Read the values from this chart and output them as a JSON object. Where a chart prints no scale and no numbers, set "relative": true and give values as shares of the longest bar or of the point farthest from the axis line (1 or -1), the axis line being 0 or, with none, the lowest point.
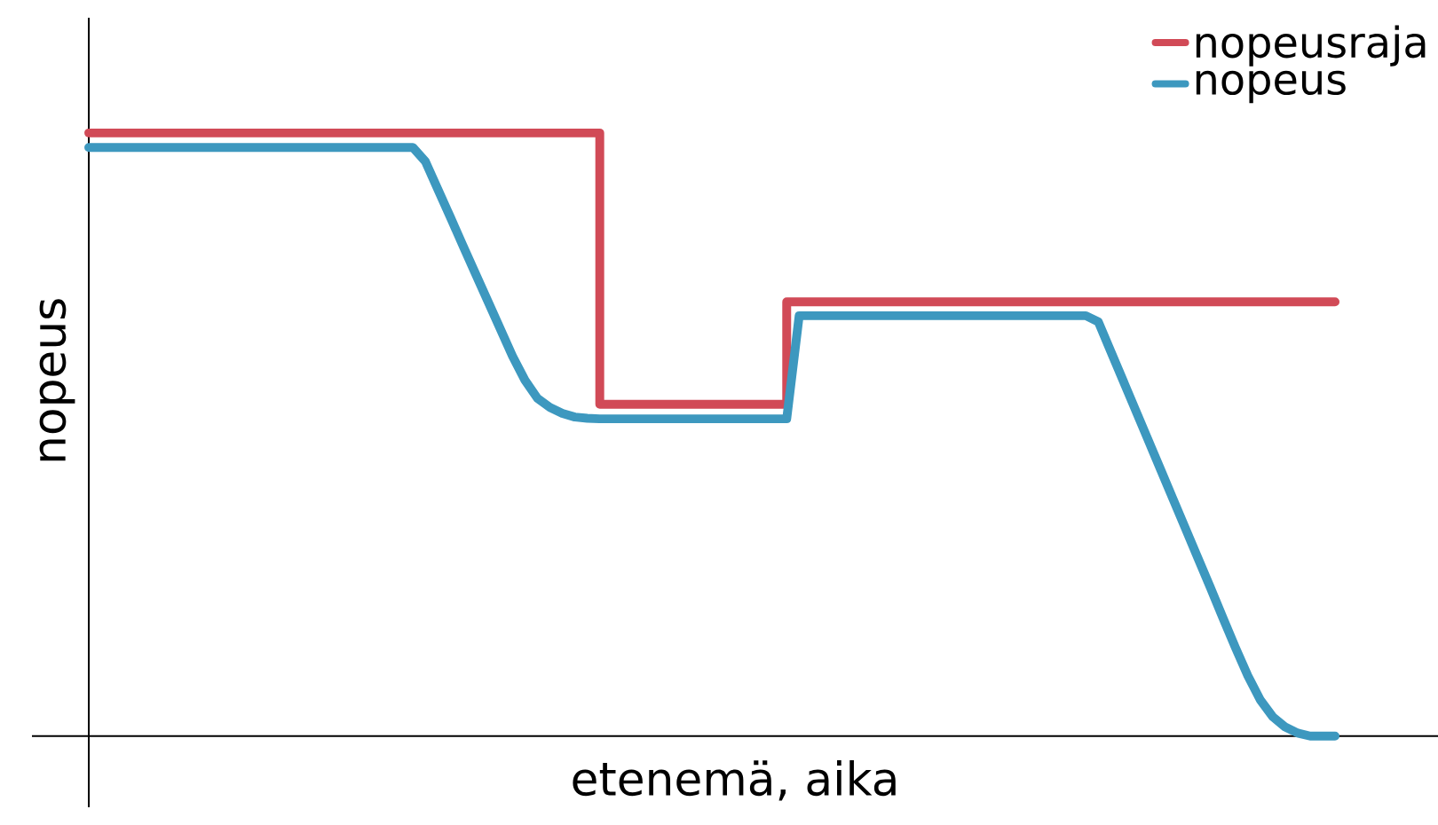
{
  "chart_data": {
    "type": "line",
    "xlabel": "etenemä, aika",
    "ylabel": "nopeus",
    "relative": true,
    "legend": "top right",
    "marker": "none",
    "line_style": "solid",
    "categories": [
      null,
      null,
      null,
      null,
      null,
      null,
      null,
      null,
      null,
      null,
      null,
      null,
      null,
      null,
      null,
      null,
      null,
      null,
      null,
      null,
      null,
      null,
      null,
      null,
      null,
      null,
      null,
      null,
      null,
      null,
      null,
      null,
      null,
      null,
      null,
      null,
      null,
      null,
      null,
      null,
      null,
      null,
      null,
      null,
      null,
      null,
      null,
      null,
      null,
      null,
      null,
      null,
      null,
      null,
      null,
      null,
      null,
      null,
      null,
      null,
      null,
      null,
      null,
      null,
      null,
      null,
      null,
      null,
      null,
      null,
      null,
      null,
      null,
      null,
      null,
      null,
      null,
      null,
      null,
      null,
      null,
      null,
      null,
      null,
      null,
      null,
      null,
      null,
      null,
      null,
      null,
      null,
      null,
      null,
      null,
      null,
      null,
      null,
      null,
      null,
      null
    ],
    "series": [
      {
        "name": "nopeusraja",
        "type": "step",
        "color": "#d14a57",
        "values": [
          1,
          1,
          1,
          1,
          1,
          1,
          1,
          1,
          1,
          1,
          1,
          1,
          1,
          1,
          1,
          1,
          1,
          1,
          1,
          1,
          1,
          1,
          1,
          1,
          1,
          1,
          1,
          1,
          1,
          1,
          1,
          1,
          1,
          1,
          1,
          1,
          1,
          1,
          1,
          1,
          1,
          0.55,
          0.55,
          0.55,
          0.55,
          0.55,
          0.55,
          0.55,
          0.55,
          0.55,
          0.55,
          0.55,
          0.55,
          0.55,
          0.55,
          0.55,
          0.72,
          0.72,
          0.72,
          0.72,
          0.72,
          0.72,
          0.72,
          0.72,
          0.72,
          0.72,
          0.72,
          0.72,
          0.72,
          0.72,
          0.72,
          0.72,
          0.72,
          0.72,
          0.72,
          0.72,
          0.72,
          0.72,
          0.72,
          0.72,
          0.72,
          0.72,
          0.72,
          0.72,
          0.72,
          0.72,
          0.72,
          0.72,
          0.72,
          0.72,
          0.72,
          0.72,
          0.72,
          0.72,
          0.72,
          0.72,
          0.72,
          0.72,
          0.72,
          0.72,
          0.72
        ]
      },
      {
        "name": "nopeus",
        "color": "#3d98bf",
        "values": [
          0.976,
          0.976,
          0.976,
          0.976,
          0.976,
          0.976,
          0.976,
          0.976,
          0.976,
          0.976,
          0.976,
          0.976,
          0.976,
          0.976,
          0.976,
          0.976,
          0.976,
          0.976,
          0.976,
          0.976,
          0.976,
          0.976,
          0.976,
          0.976,
          0.976,
          0.976,
          0.976,
          0.953,
          0.907,
          0.861,
          0.814,
          0.768,
          0.722,
          0.676,
          0.63,
          0.59,
          0.56,
          0.545,
          0.535,
          0.529,
          0.527,
          0.526,
          0.526,
          0.526,
          0.526,
          0.526,
          0.526,
          0.526,
          0.526,
          0.526,
          0.526,
          0.526,
          0.526,
          0.526,
          0.526,
          0.526,
          0.526,
          0.697,
          0.697,
          0.697,
          0.697,
          0.697,
          0.697,
          0.697,
          0.697,
          0.697,
          0.697,
          0.697,
          0.697,
          0.697,
          0.697,
          0.697,
          0.697,
          0.697,
          0.697,
          0.697,
          0.697,
          0.697,
          0.697,
          0.697,
          0.697,
          0.687,
          0.638,
          0.589,
          0.54,
          0.491,
          0.442,
          0.393,
          0.344,
          0.295,
          0.246,
          0.196,
          0.147,
          0.1,
          0.06,
          0.032,
          0.015,
          0.005,
          0,
          0,
          0
        ]
      }
    ]
  }
}
